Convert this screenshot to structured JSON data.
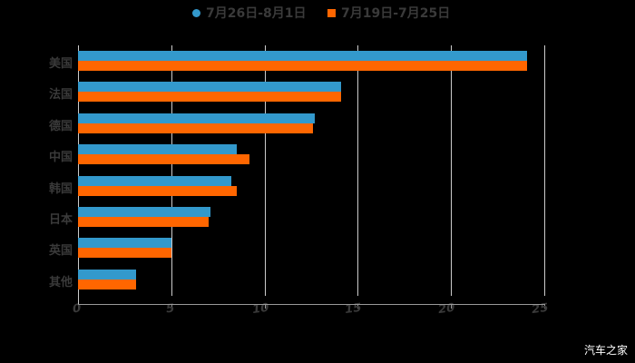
{
  "chart_data": {
    "type": "bar",
    "orientation": "horizontal",
    "title": "",
    "xlabel": "",
    "ylabel": "",
    "xlim": [
      0,
      25
    ],
    "x_ticks": [
      "0",
      "5",
      "10",
      "15",
      "20",
      "25"
    ],
    "grid": true,
    "legend_position": "top",
    "categories": [
      "美国",
      "法国",
      "德国",
      "中国",
      "韩国",
      "日本",
      "英国",
      "其他"
    ],
    "series": [
      {
        "name": "7月26日-8月1日",
        "color": "#3399cc",
        "values": [
          24.1,
          14.1,
          12.7,
          8.5,
          8.2,
          7.1,
          5.0,
          3.1
        ]
      },
      {
        "name": "7月19日-7月25日",
        "color": "#ff6600",
        "values": [
          24.1,
          14.1,
          12.6,
          9.2,
          8.5,
          7.0,
          5.0,
          3.1
        ]
      }
    ]
  },
  "legend": {
    "items": [
      {
        "label": "7月26日-8月1日",
        "color": "#3399cc",
        "shape": "circle"
      },
      {
        "label": "7月19日-7月25日",
        "color": "#ff6600",
        "shape": "square"
      }
    ]
  },
  "watermark": "汽车之家"
}
